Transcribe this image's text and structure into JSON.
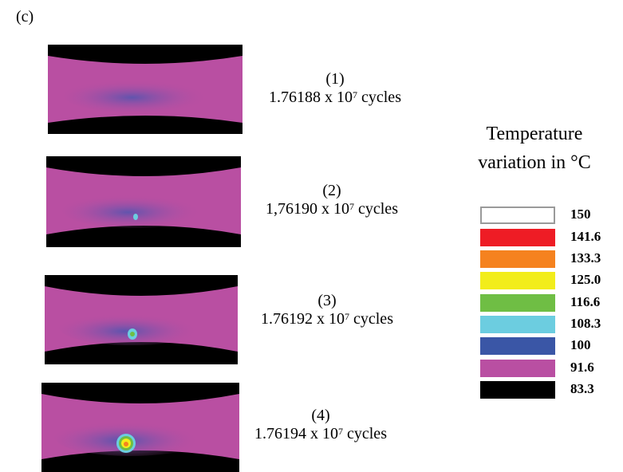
{
  "panel_label": "(c)",
  "frames": [
    {
      "index": "(1)",
      "cycles_mantissa": "1.76188 x 10",
      "cycles_exponent": "7",
      "cycles_unit": " cycles",
      "hotspot": "none"
    },
    {
      "index": "(2)",
      "cycles_mantissa": "1,76190 x 10",
      "cycles_exponent": "7",
      "cycles_unit": " cycles",
      "hotspot": "small"
    },
    {
      "index": "(3)",
      "cycles_mantissa": "1.76192 x 10",
      "cycles_exponent": "7",
      "cycles_unit": " cycles",
      "hotspot": "medium"
    },
    {
      "index": "(4)",
      "cycles_mantissa": "1.76194 x 10",
      "cycles_exponent": "7",
      "cycles_unit": " cycles",
      "hotspot": "large"
    }
  ],
  "legend": {
    "title_line1": "Temperature",
    "title_line2": "variation in °C",
    "entries": [
      {
        "value": "150",
        "color": "#ffffff"
      },
      {
        "value": "141.6",
        "color": "#ee1c25"
      },
      {
        "value": "133.3",
        "color": "#f5821f"
      },
      {
        "value": "125.0",
        "color": "#f2ed1b"
      },
      {
        "value": "116.6",
        "color": "#6fbe44"
      },
      {
        "value": "108.3",
        "color": "#6ccde0"
      },
      {
        "value": "100",
        "color": "#3a56a6"
      },
      {
        "value": "91.6",
        "color": "#b94fa2"
      },
      {
        "value": "83.3",
        "color": "#000000"
      }
    ]
  }
}
